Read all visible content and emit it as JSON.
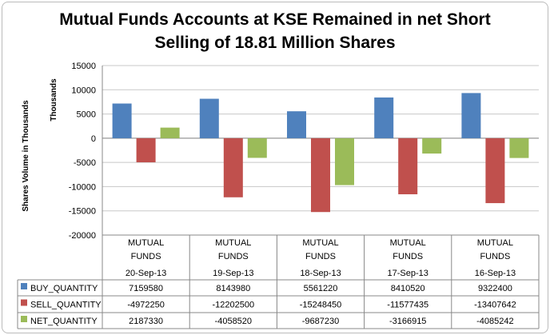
{
  "chart_data": {
    "type": "bar",
    "title_line1": "Mutual Funds Accounts at KSE Remained in net Short",
    "title_line2": "Selling of 18.81 Million Shares",
    "ylabel": "Shares Volume in Thousands",
    "yunit_label": "Thousands",
    "ylim": [
      -20000,
      15000
    ],
    "yticks": [
      15000,
      10000,
      5000,
      0,
      -5000,
      -10000,
      -15000,
      -20000
    ],
    "category_group": "MUTUAL FUNDS",
    "categories": [
      "20-Sep-13",
      "19-Sep-13",
      "18-Sep-13",
      "17-Sep-13",
      "16-Sep-13"
    ],
    "series": [
      {
        "name": "BUY_QUANTITY",
        "color": "#4F81BD",
        "values": [
          7159580,
          8143980,
          5561220,
          8410520,
          9322400
        ]
      },
      {
        "name": "SELL_QUANTITY",
        "color": "#C0504D",
        "values": [
          -4972250,
          -12202500,
          -15248450,
          -11577435,
          -13407642
        ]
      },
      {
        "name": "NET_QUANTITY",
        "color": "#9BBB59",
        "values": [
          2187330,
          -4058520,
          -9687230,
          -3166915,
          -4085242
        ]
      }
    ],
    "grid": true,
    "legend": "data-table"
  }
}
